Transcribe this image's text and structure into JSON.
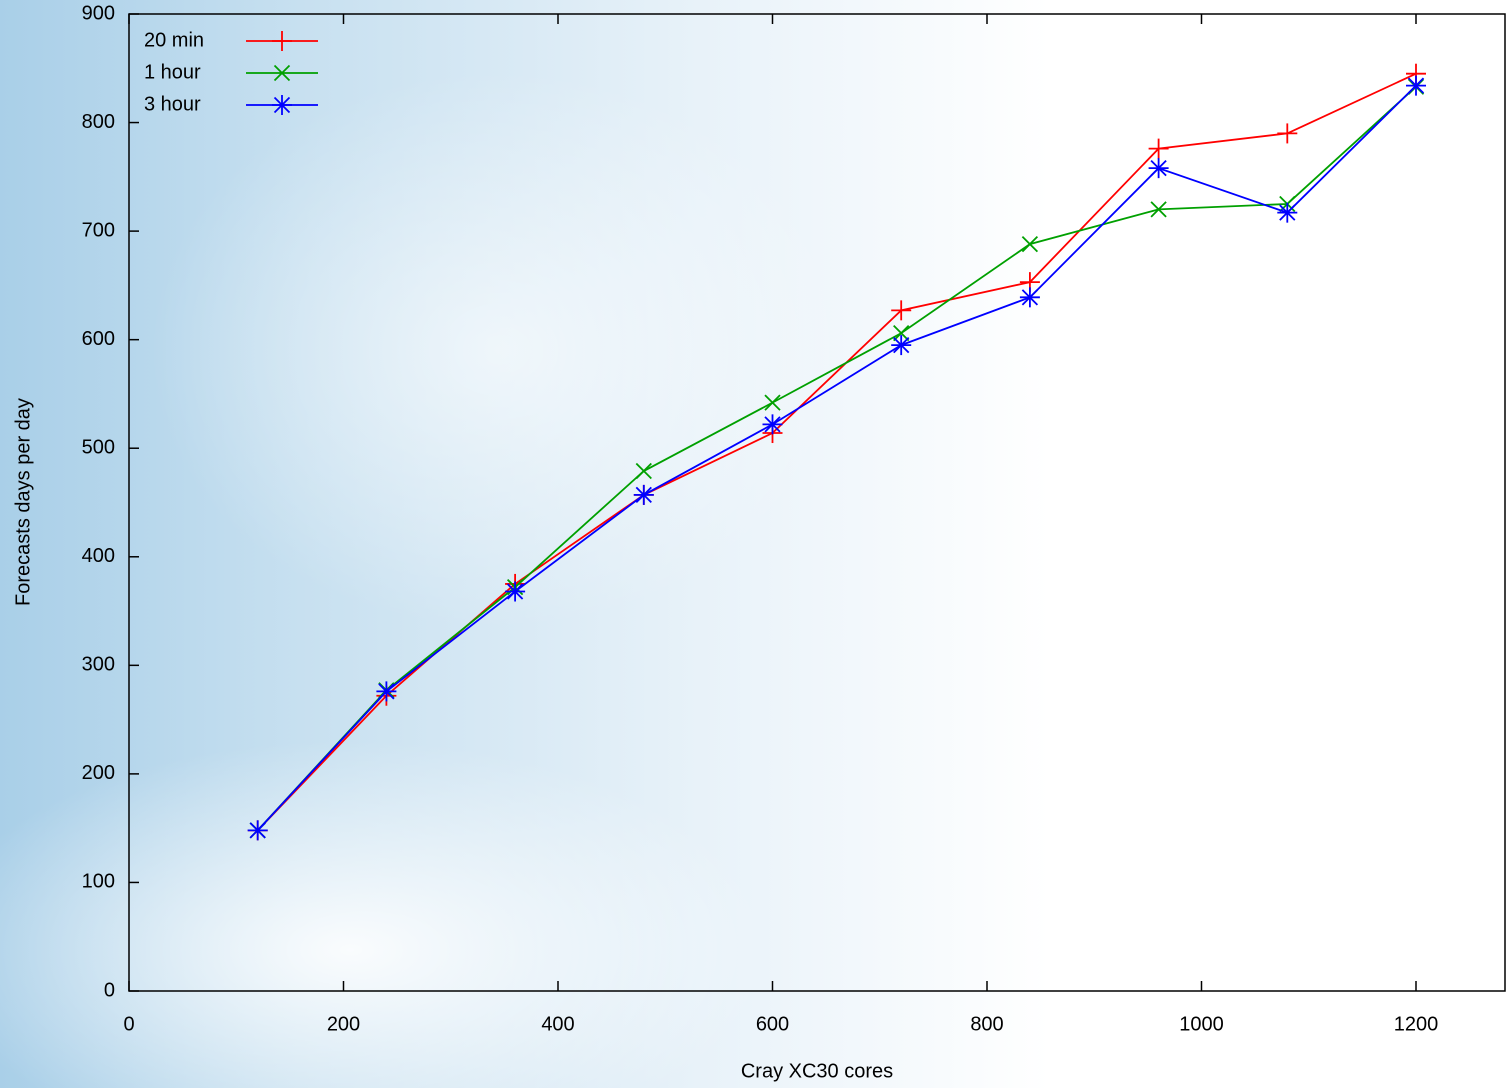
{
  "chart_data": {
    "type": "line",
    "x_label": "Cray XC30 cores",
    "y_label": "Forecasts days per day",
    "x": [
      120,
      240,
      360,
      480,
      600,
      720,
      840,
      960,
      1080,
      1200
    ],
    "series": [
      {
        "name": "20 min",
        "color": "#ff0000",
        "marker": "plus",
        "values": [
          148,
          272,
          375,
          457,
          514,
          627,
          653,
          776,
          790,
          845
        ]
      },
      {
        "name": "1 hour",
        "color": "#00a000",
        "marker": "cross",
        "values": [
          148,
          277,
          372,
          479,
          542,
          606,
          688,
          720,
          725,
          833
        ]
      },
      {
        "name": "3 hour",
        "color": "#0000ff",
        "marker": "star",
        "values": [
          148,
          276,
          368,
          457,
          522,
          595,
          639,
          758,
          717,
          834
        ]
      }
    ],
    "xlim": [
      0,
      1280
    ],
    "xticks": [
      0,
      200,
      400,
      600,
      800,
      1000,
      1200
    ],
    "ylim": [
      0,
      900
    ],
    "yticks": [
      0,
      100,
      200,
      300,
      400,
      500,
      600,
      700,
      800,
      900
    ],
    "legend": "top-left"
  }
}
